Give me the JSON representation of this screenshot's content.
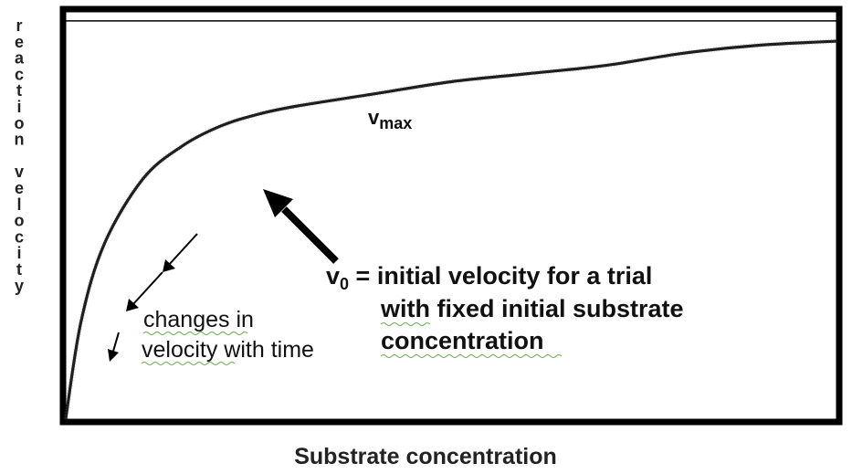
{
  "chart_data": {
    "type": "line",
    "title": "",
    "xlabel": "Substrate concentration",
    "ylabel": "reaction velocity",
    "xlim": [
      0,
      1
    ],
    "ylim": [
      0,
      1
    ],
    "grid": false,
    "series": [
      {
        "x": [
          0,
          0.02,
          0.05,
          0.1,
          0.15,
          0.2,
          0.25,
          0.3,
          0.4,
          0.5,
          0.6,
          0.7,
          0.8,
          0.9,
          1.0
        ],
        "values": [
          0,
          0.24,
          0.43,
          0.59,
          0.67,
          0.72,
          0.75,
          0.77,
          0.8,
          0.83,
          0.85,
          0.87,
          0.9,
          0.92,
          0.93
        ]
      }
    ],
    "reference_lines": [
      {
        "label": "vmax",
        "label_main": "v",
        "label_sub": "max",
        "y": 0.98
      }
    ],
    "annotations": {
      "v0": {
        "prefix": "v",
        "subscript": "0",
        "line1_rest": " = initial velocity for a trial",
        "line2": "with fixed initial substrate",
        "line3": "concentration"
      },
      "changes": {
        "line1": "changes in",
        "line2": "velocity with time"
      }
    }
  },
  "colors": {
    "curve": "#1a1a1a",
    "frame": "#000000",
    "text": "#111111",
    "spellcheck": "#6aa84f"
  }
}
